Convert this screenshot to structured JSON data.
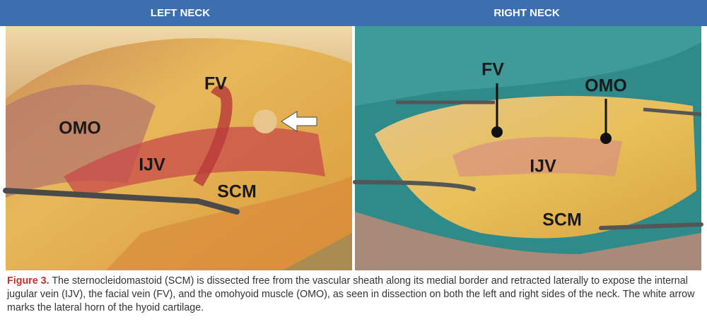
{
  "panels": [
    {
      "title": "LEFT NECK",
      "labels": [
        "OMO",
        "FV",
        "IJV",
        "SCM"
      ]
    },
    {
      "title": "RIGHT NECK",
      "labels": [
        "FV",
        "OMO",
        "IJV",
        "SCM"
      ]
    }
  ],
  "caption": {
    "label": "Figure 3.",
    "text": "The sternocleidomastoid (SCM) is dissected free from the vascular sheath along its medial border and retracted laterally to expose the internal jugular vein (IJV), the facial vein (FV), and the omohyoid muscle (OMO), as seen in dissection on both the left and right sides of the neck. The white arrow marks the lateral horn of the hyoid cartilage."
  }
}
